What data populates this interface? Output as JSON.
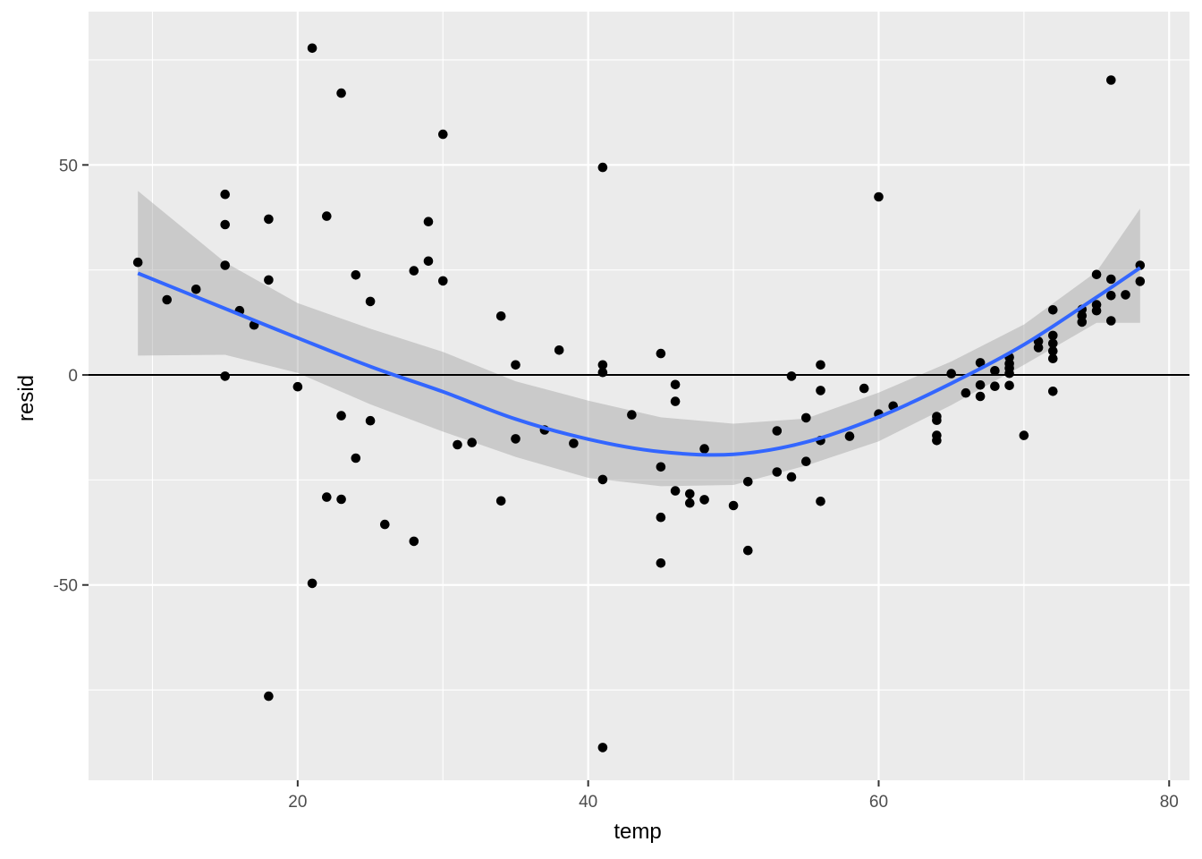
{
  "chart_data": {
    "type": "scatter",
    "xlabel": "temp",
    "ylabel": "resid",
    "xlim": [
      5.6,
      81.4
    ],
    "ylim": [
      -96.5,
      86.5
    ],
    "x_ticks": [
      20,
      40,
      60,
      80
    ],
    "x_ticks_minor": [
      10,
      30,
      50,
      70
    ],
    "y_ticks": [
      -50,
      0,
      50
    ],
    "y_ticks_minor": [
      -75,
      -25,
      25,
      75
    ],
    "grid": true,
    "reference_line_y": 0,
    "colors": {
      "panel_background": "#ebebeb",
      "grid": "#ffffff",
      "points": "#000000",
      "smooth_line": "#3366ff",
      "confidence_band": "#999999",
      "reference_line": "#000000"
    },
    "points": [
      [
        9,
        26.8
      ],
      [
        11,
        17.9
      ],
      [
        13,
        20.4
      ],
      [
        15,
        43
      ],
      [
        15,
        35.8
      ],
      [
        15,
        26.1
      ],
      [
        15,
        -0.3
      ],
      [
        16,
        15.3
      ],
      [
        17,
        11.9
      ],
      [
        18,
        37.1
      ],
      [
        18,
        22.6
      ],
      [
        18,
        -76.5
      ],
      [
        20,
        -2.8
      ],
      [
        21,
        77.8
      ],
      [
        21,
        -49.6
      ],
      [
        22,
        37.8
      ],
      [
        22,
        -29.1
      ],
      [
        23,
        67.1
      ],
      [
        23,
        -9.7
      ],
      [
        23,
        -29.6
      ],
      [
        24,
        23.8
      ],
      [
        24,
        -19.8
      ],
      [
        25,
        17.5
      ],
      [
        25,
        -10.9
      ],
      [
        26,
        -35.6
      ],
      [
        28,
        24.8
      ],
      [
        28,
        -39.6
      ],
      [
        29,
        36.5
      ],
      [
        29,
        27.1
      ],
      [
        30,
        57.3
      ],
      [
        30,
        22.4
      ],
      [
        31,
        -16.6
      ],
      [
        32,
        -16.1
      ],
      [
        34,
        14
      ],
      [
        34,
        -30
      ],
      [
        35,
        2.4
      ],
      [
        35,
        -15.2
      ],
      [
        37,
        -13.1
      ],
      [
        38,
        5.9
      ],
      [
        39,
        -16.3
      ],
      [
        41,
        49.4
      ],
      [
        41,
        2.4
      ],
      [
        41,
        0.6
      ],
      [
        41,
        -24.9
      ],
      [
        41,
        -88.7
      ],
      [
        43,
        -9.5
      ],
      [
        45,
        5.1
      ],
      [
        45,
        -21.9
      ],
      [
        45,
        -33.9
      ],
      [
        45,
        -44.8
      ],
      [
        46,
        -2.3
      ],
      [
        46,
        -6.3
      ],
      [
        46,
        -27.6
      ],
      [
        47,
        -28.3
      ],
      [
        47,
        -30.5
      ],
      [
        48,
        -17.6
      ],
      [
        48,
        -29.7
      ],
      [
        50,
        -31.1
      ],
      [
        51,
        -25.4
      ],
      [
        51,
        -41.8
      ],
      [
        53,
        -13.3
      ],
      [
        53,
        -23.1
      ],
      [
        54,
        -0.3
      ],
      [
        54,
        -24.3
      ],
      [
        55,
        -10.2
      ],
      [
        55,
        -20.6
      ],
      [
        56,
        2.4
      ],
      [
        56,
        -3.7
      ],
      [
        56,
        -15.6
      ],
      [
        56,
        -30.1
      ],
      [
        58,
        -14.6
      ],
      [
        59,
        -3.2
      ],
      [
        60,
        42.4
      ],
      [
        60,
        -9.3
      ],
      [
        61,
        -7.4
      ],
      [
        64,
        -9.9
      ],
      [
        64,
        -10.8
      ],
      [
        64,
        -14.4
      ],
      [
        64,
        -15.6
      ],
      [
        65,
        0.3
      ],
      [
        66,
        -4.3
      ],
      [
        67,
        2.9
      ],
      [
        67,
        -2.4
      ],
      [
        67,
        -5.1
      ],
      [
        68,
        1
      ],
      [
        68,
        -2.7
      ],
      [
        69,
        4.2
      ],
      [
        69,
        2.7
      ],
      [
        69,
        1.6
      ],
      [
        69,
        0.4
      ],
      [
        69,
        -2.5
      ],
      [
        70,
        -14.4
      ],
      [
        71,
        8
      ],
      [
        71,
        6.5
      ],
      [
        72,
        15.5
      ],
      [
        72,
        9.4
      ],
      [
        72,
        7.5
      ],
      [
        72,
        5.7
      ],
      [
        72,
        3.9
      ],
      [
        72,
        -3.9
      ],
      [
        74,
        15.6
      ],
      [
        74,
        14.1
      ],
      [
        74,
        12.6
      ],
      [
        75,
        23.9
      ],
      [
        75,
        16.7
      ],
      [
        75,
        15.3
      ],
      [
        76,
        70.2
      ],
      [
        76,
        22.8
      ],
      [
        76,
        18.9
      ],
      [
        76,
        12.9
      ],
      [
        77,
        19.1
      ],
      [
        78,
        26.1
      ],
      [
        78,
        22.3
      ]
    ],
    "smooth": {
      "x": [
        9,
        15,
        20,
        25,
        30,
        35,
        40,
        45,
        50,
        55,
        60,
        65,
        70,
        75,
        78
      ],
      "y": [
        24.2,
        15.8,
        8.8,
        2,
        -4,
        -10.5,
        -15.3,
        -18.3,
        -18.9,
        -16,
        -10,
        -2,
        7.2,
        18.5,
        25.5
      ],
      "lower": [
        4.6,
        4.8,
        0.5,
        -7,
        -13.5,
        -19.5,
        -24.5,
        -26.5,
        -26.2,
        -21.6,
        -15.8,
        -7.2,
        2.4,
        12.4,
        12.4
      ],
      "upper": [
        43.8,
        26.8,
        17.1,
        11,
        5.5,
        -1.5,
        -6.1,
        -10.1,
        -11.6,
        -10.4,
        -4.2,
        3.2,
        12,
        24.6,
        39.6
      ]
    }
  }
}
